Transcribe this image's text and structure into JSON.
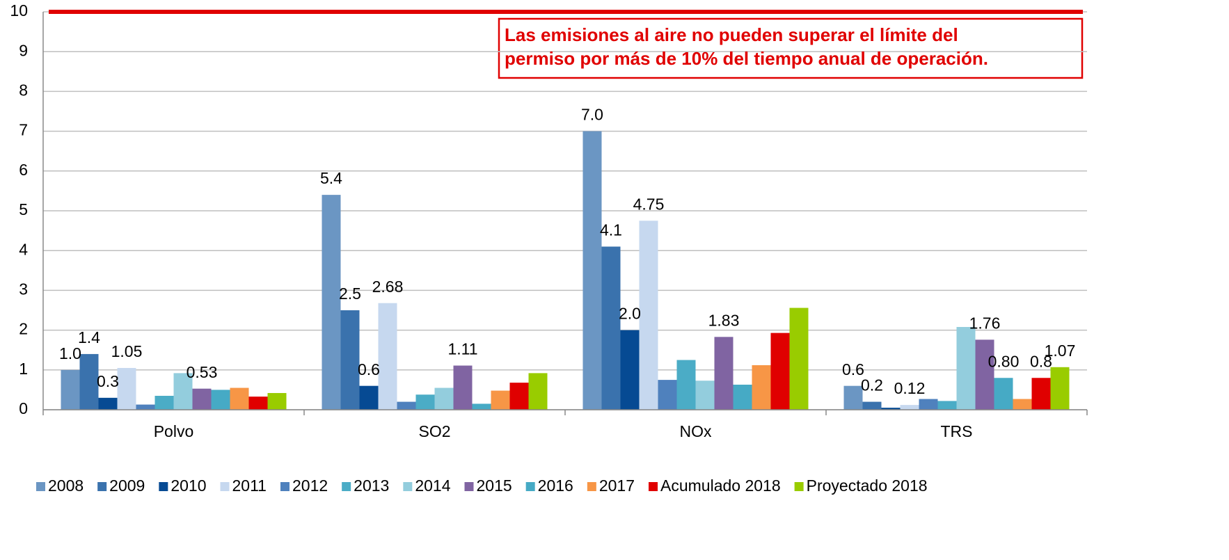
{
  "chart_data": {
    "type": "bar",
    "categories": [
      "Polvo",
      "SO2",
      "NOx",
      "TRS"
    ],
    "annotation": [
      "Las emisiones al aire no pueden superar el límite del",
      "permiso por más de 10% del tiempo anual de operación."
    ],
    "limit_line": {
      "value": 10,
      "color": "#e00000"
    },
    "ylim": [
      0,
      10
    ],
    "yticks": [
      0,
      1,
      2,
      3,
      4,
      5,
      6,
      7,
      8,
      9,
      10
    ],
    "grid": true,
    "legend": "bottom",
    "series": [
      {
        "name": "2008",
        "color": "#6b96c3",
        "values": [
          1.0,
          5.4,
          7.0,
          0.6
        ],
        "value_labels": [
          "1.0",
          "5.4",
          "7.0",
          "0.6"
        ]
      },
      {
        "name": "2009",
        "color": "#3a72ad",
        "values": [
          1.4,
          2.5,
          4.1,
          0.2
        ],
        "value_labels": [
          "1.4",
          "2.5",
          "4.1",
          "0.2"
        ]
      },
      {
        "name": "2010",
        "color": "#064a93",
        "values": [
          0.3,
          0.6,
          2.0,
          0.05
        ],
        "value_labels": [
          "0.3",
          "0.6",
          "2.0",
          null
        ]
      },
      {
        "name": "2011",
        "color": "#c6d8ef",
        "values": [
          1.05,
          2.68,
          4.75,
          0.12
        ],
        "value_labels": [
          "1.05",
          "2.68",
          "4.75",
          "0.12"
        ]
      },
      {
        "name": "2012",
        "color": "#4f81bd",
        "values": [
          0.13,
          0.2,
          0.75,
          0.27
        ]
      },
      {
        "name": "2013",
        "color": "#4bacc6",
        "values": [
          0.35,
          0.38,
          1.25,
          0.22
        ]
      },
      {
        "name": "2014",
        "color": "#93cddd",
        "values": [
          0.92,
          0.55,
          0.73,
          2.08
        ]
      },
      {
        "name": "2015",
        "color": "#8064a2",
        "values": [
          0.53,
          1.11,
          1.83,
          1.76
        ],
        "value_labels": [
          "0.53",
          "1.11",
          "1.83",
          "1.76"
        ]
      },
      {
        "name": "2016",
        "color": "#46aac5",
        "values": [
          0.5,
          0.15,
          0.63,
          0.8
        ],
        "value_labels": [
          null,
          null,
          null,
          "0.80"
        ]
      },
      {
        "name": "2017",
        "color": "#f79646",
        "values": [
          0.55,
          0.48,
          1.12,
          0.27
        ]
      },
      {
        "name": "Acumulado 2018",
        "color": "#e00000",
        "values": [
          0.33,
          0.68,
          1.93,
          0.8
        ],
        "value_labels": [
          null,
          null,
          null,
          "0.8"
        ]
      },
      {
        "name": "Proyectado 2018",
        "color": "#99cc00",
        "values": [
          0.42,
          0.92,
          2.56,
          1.07
        ],
        "value_labels": [
          null,
          null,
          null,
          "1.07"
        ]
      }
    ]
  }
}
